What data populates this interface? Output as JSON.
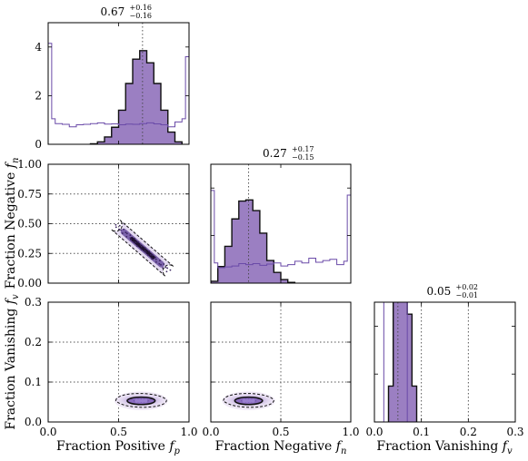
{
  "chart_data": {
    "type": "corner",
    "parameters": [
      {
        "key": "fp",
        "label": "Fraction Positive",
        "symbol": "f",
        "sub": "p",
        "range": [
          0,
          1.0
        ],
        "ticks": [
          0.0,
          0.5,
          1.0
        ],
        "tick_labels": [
          "0.0",
          "0.5",
          "1.0"
        ],
        "median": 0.67,
        "plus": "+0.16",
        "minus": "−0.16",
        "value_text": "0.67"
      },
      {
        "key": "fn",
        "label": "Fraction Negative",
        "symbol": "f",
        "sub": "n",
        "range": [
          0,
          1.0
        ],
        "ticks": [
          0.0,
          0.5,
          1.0
        ],
        "tick_labels": [
          "0.0",
          "0.5",
          "1.0"
        ],
        "median": 0.27,
        "plus": "+0.17",
        "minus": "−0.15",
        "value_text": "0.27"
      },
      {
        "key": "fv",
        "label": "Fraction Vanishing",
        "symbol": "f",
        "sub": "v",
        "range": [
          0,
          0.3
        ],
        "ticks": [
          0.0,
          0.1,
          0.2,
          0.3
        ],
        "tick_labels": [
          "0.0",
          "0.1",
          "0.2",
          "0.3"
        ],
        "median": 0.05,
        "plus": "+0.02",
        "minus": "−0.01",
        "value_text": "0.05"
      }
    ],
    "diag_ylim": [
      0,
      5
    ],
    "diag_yticks": [
      0,
      2,
      4
    ],
    "diag_ytick_labels": [
      "0",
      "2",
      "4"
    ],
    "row_ticks": {
      "fn": {
        "ticks": [
          0.0,
          0.25,
          0.5,
          0.75,
          1.0
        ],
        "labels": [
          "0.00",
          "0.25",
          "0.50",
          "0.75",
          "1.00"
        ]
      },
      "fv": {
        "ticks": [
          0.0,
          0.1,
          0.2,
          0.3
        ],
        "labels": [
          "0.0",
          "0.1",
          "0.2",
          "0.3"
        ]
      }
    },
    "colors": {
      "fill": "#9b7fc2",
      "prior": "#6a4aa8",
      "edge": "#111111",
      "contour": "#2a1a4a",
      "inner": "#7a5ab0"
    },
    "posterior_hist": {
      "fp": {
        "edges": [
          0.3,
          0.35,
          0.4,
          0.45,
          0.5,
          0.55,
          0.6,
          0.65,
          0.7,
          0.75,
          0.8,
          0.85,
          0.9,
          0.95
        ],
        "density": [
          0.02,
          0.1,
          0.3,
          0.7,
          1.4,
          2.5,
          3.5,
          3.85,
          3.35,
          2.5,
          1.4,
          0.5,
          0.1
        ]
      },
      "fn": {
        "edges": [
          0.0,
          0.05,
          0.1,
          0.15,
          0.2,
          0.25,
          0.3,
          0.35,
          0.4,
          0.45,
          0.5,
          0.55,
          0.6
        ],
        "density": [
          0.08,
          0.7,
          1.55,
          2.7,
          3.45,
          3.5,
          3.05,
          2.1,
          0.95,
          0.45,
          0.15,
          0.03
        ]
      },
      "fv": {
        "edges": [
          0.03,
          0.04,
          0.05,
          0.06,
          0.07,
          0.08,
          0.09
        ],
        "density": [
          1.5,
          6.5,
          8.4,
          7.5,
          4.5,
          1.5
        ]
      }
    },
    "prior_hist": {
      "fp": {
        "edges": [
          0.0,
          0.025,
          0.05,
          0.1,
          0.15,
          0.2,
          0.25,
          0.3,
          0.35,
          0.4,
          0.45,
          0.5,
          0.55,
          0.6,
          0.65,
          0.7,
          0.75,
          0.8,
          0.85,
          0.9,
          0.95,
          0.975,
          1.0
        ],
        "density": [
          4.15,
          1.05,
          0.85,
          0.82,
          0.72,
          0.8,
          0.82,
          0.85,
          0.88,
          0.83,
          0.84,
          0.8,
          0.83,
          0.82,
          0.85,
          0.88,
          0.84,
          0.8,
          0.72,
          0.92,
          1.05,
          3.6
        ]
      },
      "fn": {
        "edges": [
          0.0,
          0.025,
          0.05,
          0.1,
          0.15,
          0.2,
          0.25,
          0.3,
          0.35,
          0.4,
          0.45,
          0.5,
          0.55,
          0.6,
          0.65,
          0.7,
          0.75,
          0.8,
          0.85,
          0.9,
          0.95,
          0.975,
          1.0
        ],
        "density": [
          3.9,
          0.85,
          0.65,
          0.68,
          0.72,
          0.82,
          0.78,
          0.82,
          0.75,
          0.8,
          0.85,
          0.72,
          0.78,
          0.92,
          0.85,
          1.05,
          0.88,
          0.95,
          1.0,
          0.78,
          0.92,
          3.7
        ]
      },
      "fv": {
        "edges": [
          0.02,
          0.03,
          0.04,
          0.05,
          0.06,
          0.07
        ],
        "density": [
          26,
          22,
          22,
          22,
          22
        ]
      }
    },
    "scatter_fn_vs_fp": {
      "line_from": [
        0.48,
        0.49
      ],
      "line_to": [
        0.86,
        0.1
      ],
      "contour_halfwidth": 0.025
    },
    "blob_fv_vs_fp": {
      "center": [
        0.66,
        0.053
      ],
      "rx": 0.18,
      "ry": 0.022
    },
    "blob_fv_vs_fn": {
      "center": [
        0.27,
        0.053
      ],
      "rx": 0.18,
      "ry": 0.022
    }
  }
}
